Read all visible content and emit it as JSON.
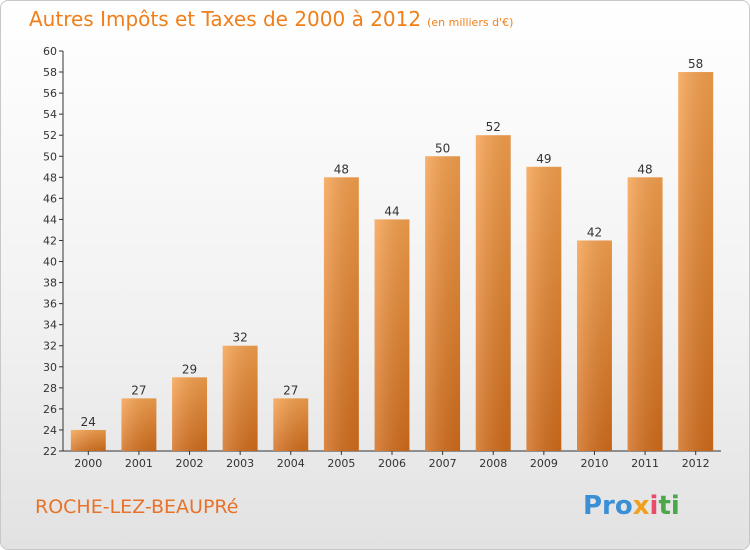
{
  "title": {
    "main": "Autres Impôts et Taxes de 2000 à 2012",
    "unit": "(en milliers d'€)"
  },
  "footer": {
    "town": "ROCHE-LEZ-BEAUPRé",
    "logo_parts": [
      "Pro",
      "x",
      "i",
      "ti"
    ]
  },
  "chart_data": {
    "type": "bar",
    "title": "Autres Impôts et Taxes de 2000 à 2012",
    "subtitle": "(en milliers d'€)",
    "categories": [
      "2000",
      "2001",
      "2002",
      "2003",
      "2004",
      "2005",
      "2006",
      "2007",
      "2008",
      "2009",
      "2010",
      "2011",
      "2012"
    ],
    "values": [
      24,
      27,
      29,
      32,
      27,
      48,
      44,
      50,
      52,
      49,
      42,
      48,
      58
    ],
    "ylim": [
      22,
      60
    ],
    "ytick_step": 2,
    "grid": false,
    "bar_color": "#f0902f",
    "axis_color": "#333333"
  }
}
